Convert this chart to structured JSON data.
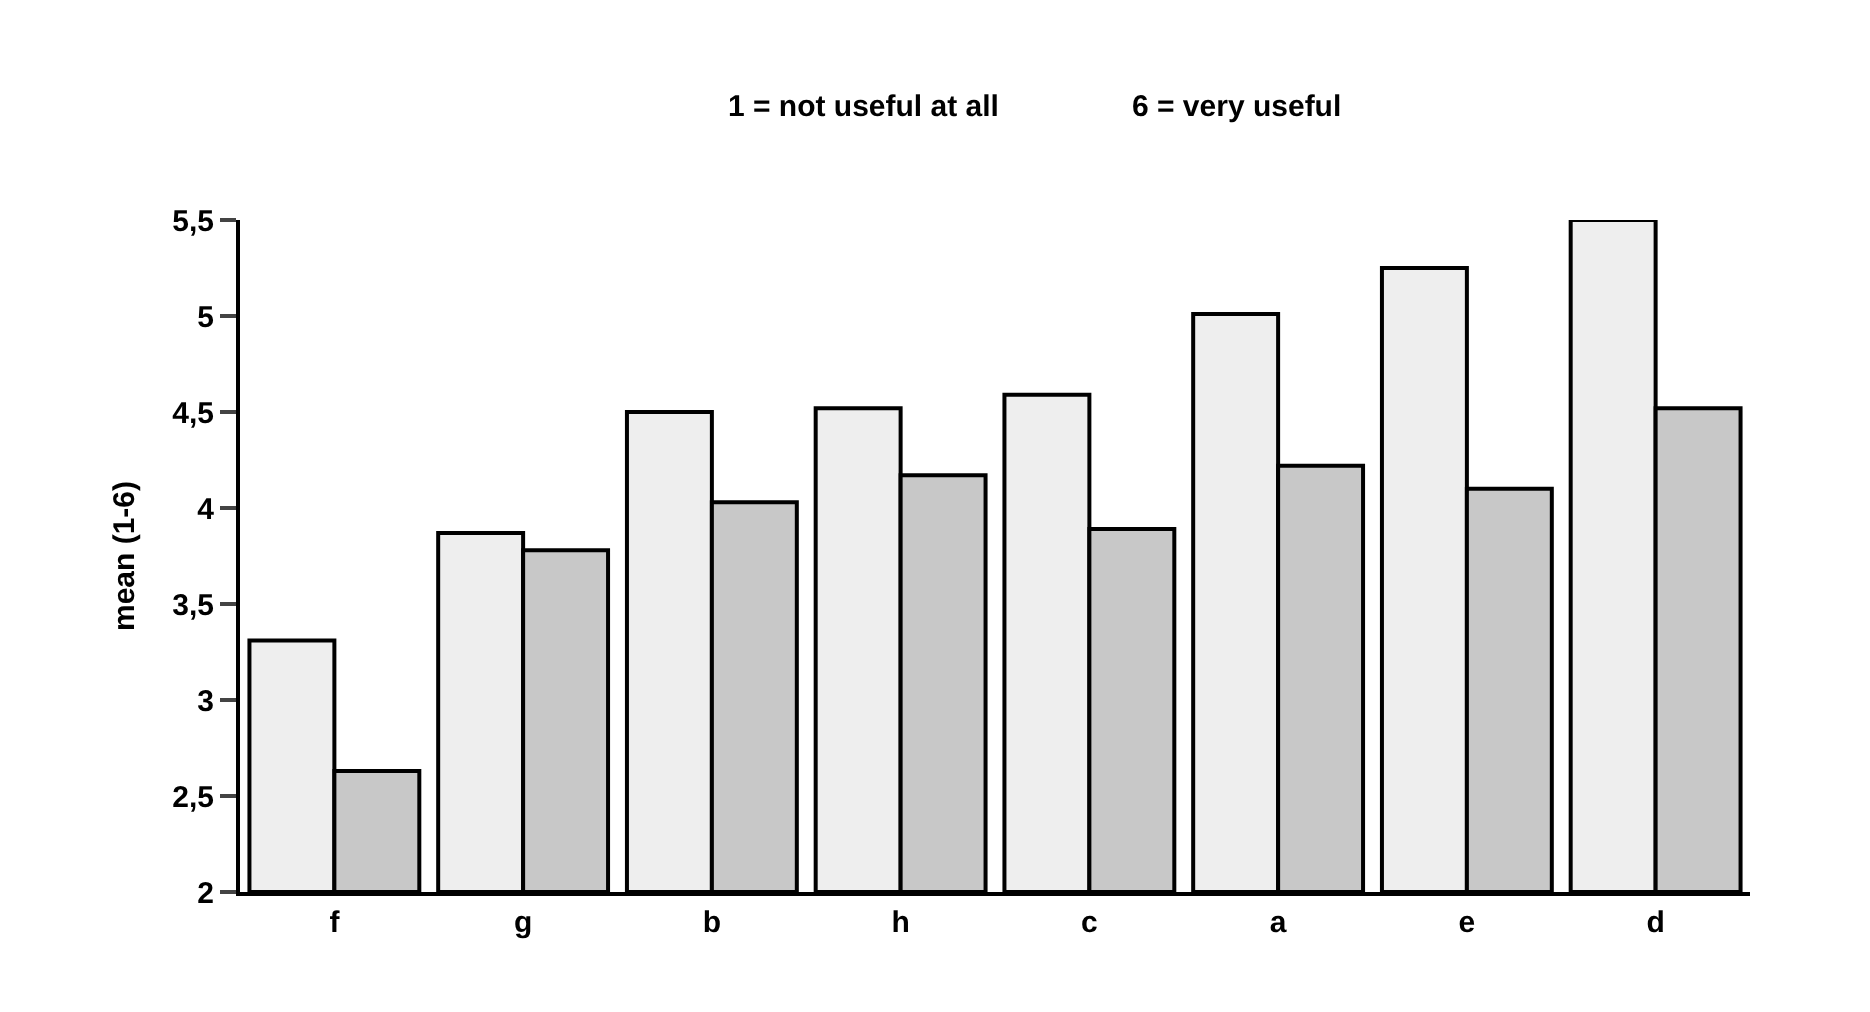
{
  "chart_data": {
    "type": "bar",
    "ylabel": "mean (1-6)",
    "annotations": [
      "1 = not useful at all",
      "6 = very useful"
    ],
    "categories": [
      "f",
      "g",
      "b",
      "h",
      "c",
      "a",
      "e",
      "d"
    ],
    "series": [
      {
        "color": "#eeeeee",
        "values": [
          3.31,
          3.87,
          4.5,
          4.52,
          4.59,
          5.01,
          5.25,
          5.5
        ]
      },
      {
        "color": "#c8c8c8",
        "values": [
          2.63,
          3.78,
          4.03,
          4.17,
          3.89,
          4.22,
          4.1,
          4.52
        ]
      }
    ],
    "ylim": [
      2,
      5.5
    ],
    "yticks": [
      2,
      {
        "value": 2.5,
        "label": "2,5"
      },
      3,
      {
        "value": 3.5,
        "label": "3,5"
      },
      4,
      {
        "value": 4.5,
        "label": "4,5"
      },
      5,
      {
        "value": 5.5,
        "label": "5,5"
      }
    ]
  }
}
